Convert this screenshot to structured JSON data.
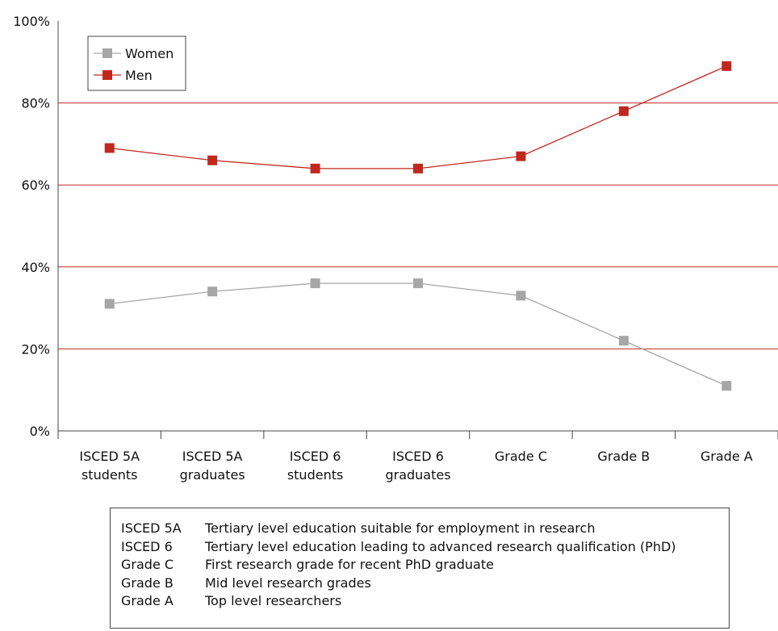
{
  "chart_data": {
    "type": "line",
    "categories": [
      [
        "ISCED 5A",
        "students"
      ],
      [
        "ISCED 5A",
        "graduates"
      ],
      [
        "ISCED 6",
        "students"
      ],
      [
        "ISCED 6",
        "graduates"
      ],
      [
        "Grade C"
      ],
      [
        "Grade B"
      ],
      [
        "Grade A"
      ]
    ],
    "series": [
      {
        "name": "Women",
        "color": "#a6a6a6",
        "values": [
          31,
          34,
          36,
          36,
          33,
          22,
          11
        ]
      },
      {
        "name": "Men",
        "color": "#c0281e",
        "values": [
          69,
          66,
          64,
          64,
          67,
          78,
          89
        ]
      }
    ],
    "ylim": [
      0,
      100
    ],
    "yticks": [
      "0%",
      "20%",
      "40%",
      "60%",
      "80%",
      "100%"
    ],
    "ytick_values": [
      0,
      20,
      40,
      60,
      80,
      100
    ],
    "gridline_color": "#c0281e",
    "grid": true,
    "legend_position": "top-left"
  },
  "glossary": [
    {
      "term": "ISCED 5A",
      "definition": "Tertiary level education suitable for employment in research"
    },
    {
      "term": "ISCED 6",
      "definition": "Tertiary level education leading to advanced research qualification (PhD)"
    },
    {
      "term": "Grade C",
      "definition": "First research grade for recent PhD graduate"
    },
    {
      "term": "Grade B",
      "definition": "Mid level research grades"
    },
    {
      "term": "Grade A",
      "definition": "Top level researchers"
    }
  ]
}
